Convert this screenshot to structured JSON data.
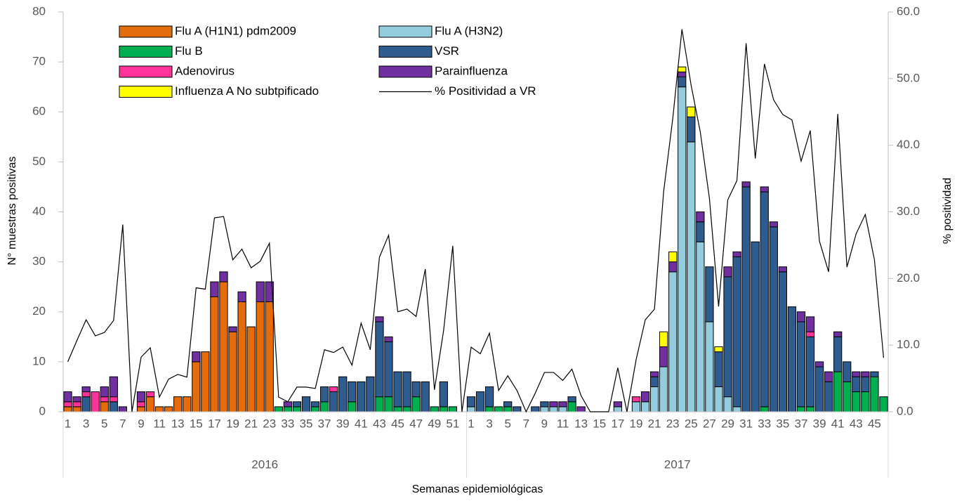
{
  "chart_data": {
    "type": "bar",
    "y_label": "N° muestras positivas",
    "y2_label": "% positividad",
    "x_label": "Semanas epidemiológicas",
    "legend": "upper left",
    "groups": [
      {
        "label": "2016",
        "categories": [
          "1",
          null,
          "3",
          null,
          "5",
          null,
          "7",
          null,
          "9",
          null,
          "11",
          null,
          "13",
          null,
          "15",
          null,
          "17",
          null,
          "19",
          null,
          "21",
          null,
          "23",
          null,
          "33",
          null,
          "35",
          null,
          "37",
          null,
          "39",
          null,
          "41",
          null,
          "43",
          null,
          "45",
          null,
          "47",
          null,
          "49",
          null,
          "51",
          null
        ]
      },
      {
        "label": "2017",
        "categories": [
          "1",
          null,
          "3",
          null,
          "5",
          null,
          "7",
          null,
          "9",
          null,
          "11",
          null,
          "13",
          null,
          "15",
          null,
          "17",
          null,
          "19",
          null,
          "21",
          null,
          "23",
          null,
          "25",
          null,
          "27",
          null,
          "29",
          null,
          "31",
          null,
          "33",
          null,
          "35",
          null,
          "37",
          null,
          "39",
          null,
          "41",
          null,
          "43",
          null,
          "45",
          null
        ]
      }
    ],
    "series": [
      {
        "name": "Flu A (H1N1) pdm2009",
        "color": "#e46c0a",
        "values": [
          1,
          1,
          0,
          0,
          2,
          0,
          0,
          0,
          1,
          3,
          1,
          1,
          3,
          3,
          10,
          12,
          23,
          26,
          16,
          22,
          17,
          22,
          22,
          0,
          0,
          0,
          0,
          0,
          0,
          0,
          0,
          0,
          0,
          0,
          0,
          0,
          0,
          0,
          0,
          0,
          0,
          0,
          0,
          0,
          0,
          0,
          0,
          0,
          0,
          0,
          0,
          0,
          0,
          0,
          0,
          0,
          0,
          0,
          0,
          0,
          0,
          0,
          0,
          0,
          0,
          0,
          0,
          0,
          0,
          0,
          0,
          0,
          0,
          0,
          0,
          0,
          0,
          0,
          0,
          0,
          0,
          0,
          0,
          0,
          0,
          0,
          0,
          0,
          0,
          0
        ]
      },
      {
        "name": "Flu A (H3N2)",
        "color": "#93cddd",
        "values": [
          0,
          0,
          0,
          0,
          0,
          0,
          0,
          0,
          0,
          0,
          0,
          0,
          0,
          0,
          0,
          0,
          0,
          0,
          0,
          0,
          0,
          0,
          0,
          0,
          0,
          0,
          0,
          0,
          0,
          0,
          0,
          0,
          0,
          0,
          0,
          0,
          0,
          0,
          0,
          0,
          0,
          0,
          0,
          0,
          1,
          0,
          0,
          0,
          0,
          0,
          0,
          0,
          1,
          1,
          1,
          0,
          0,
          0,
          0,
          0,
          1,
          0,
          2,
          2,
          5,
          9,
          28,
          65,
          54,
          34,
          18,
          5,
          3,
          1,
          0,
          0,
          0,
          0,
          0,
          0,
          0,
          0,
          0,
          0,
          0,
          0,
          0,
          0,
          0,
          0
        ]
      },
      {
        "name": "Flu B",
        "color": "#00b050",
        "values": [
          0,
          0,
          0,
          0,
          0,
          0,
          0,
          0,
          0,
          0,
          0,
          0,
          0,
          0,
          0,
          0,
          0,
          0,
          0,
          0,
          0,
          0,
          0,
          1,
          1,
          1,
          0,
          1,
          2,
          0,
          0,
          2,
          0,
          0,
          3,
          3,
          1,
          1,
          3,
          0,
          1,
          1,
          1,
          0,
          0,
          0,
          1,
          1,
          1,
          0,
          0,
          0,
          0,
          0,
          0,
          2,
          0,
          0,
          0,
          0,
          0,
          0,
          0,
          0,
          0,
          0,
          0,
          0,
          0,
          0,
          0,
          0,
          0,
          0,
          0,
          0,
          1,
          0,
          0,
          0,
          1,
          1,
          0,
          0,
          8,
          6,
          4,
          4,
          7,
          3
        ]
      },
      {
        "name": "VSR",
        "color": "#2f5c8f",
        "values": [
          0,
          0,
          3,
          0,
          0,
          2,
          0,
          0,
          0,
          0,
          0,
          0,
          0,
          0,
          0,
          0,
          0,
          0,
          0,
          0,
          0,
          0,
          0,
          0,
          0,
          1,
          3,
          1,
          3,
          4,
          7,
          4,
          6,
          7,
          15,
          11,
          7,
          7,
          3,
          6,
          0,
          5,
          0,
          0,
          2,
          4,
          4,
          0,
          1,
          1,
          0,
          1,
          1,
          0,
          0,
          1,
          0,
          0,
          0,
          0,
          0,
          0,
          0,
          0,
          2,
          0,
          0,
          2,
          5,
          4,
          11,
          7,
          24,
          30,
          45,
          34,
          43,
          37,
          28,
          21,
          17,
          14,
          9,
          6,
          7,
          4,
          3,
          3,
          1,
          0
        ]
      },
      {
        "name": "Adenovirus",
        "color": "#ff3399",
        "values": [
          1,
          1,
          1,
          4,
          1,
          1,
          0,
          0,
          1,
          1,
          0,
          0,
          0,
          0,
          0,
          0,
          0,
          0,
          0,
          0,
          0,
          0,
          0,
          0,
          0,
          0,
          0,
          0,
          0,
          1,
          0,
          0,
          0,
          0,
          0,
          0,
          0,
          0,
          0,
          0,
          0,
          0,
          0,
          0,
          0,
          0,
          0,
          0,
          0,
          0,
          0,
          0,
          0,
          0,
          0,
          0,
          0,
          0,
          0,
          0,
          0,
          0,
          1,
          0,
          0,
          0,
          0,
          0,
          0,
          0,
          0,
          0,
          0,
          0,
          0,
          0,
          0,
          0,
          0,
          0,
          0,
          1,
          0,
          0,
          0,
          0,
          0,
          0,
          0,
          0
        ]
      },
      {
        "name": "Parainfluenza",
        "color": "#7030a0",
        "values": [
          2,
          1,
          1,
          0,
          2,
          4,
          1,
          0,
          2,
          0,
          0,
          0,
          0,
          0,
          2,
          0,
          3,
          2,
          1,
          2,
          0,
          4,
          4,
          0,
          1,
          0,
          0,
          0,
          0,
          0,
          0,
          0,
          0,
          0,
          1,
          1,
          0,
          0,
          0,
          0,
          0,
          0,
          0,
          0,
          0,
          0,
          0,
          0,
          0,
          0,
          0,
          0,
          0,
          1,
          1,
          0,
          1,
          0,
          0,
          0,
          1,
          0,
          0,
          2,
          1,
          4,
          2,
          1,
          0,
          2,
          0,
          0,
          2,
          1,
          1,
          0,
          1,
          1,
          1,
          0,
          2,
          3,
          1,
          2,
          1,
          0,
          1,
          1,
          0,
          0
        ]
      },
      {
        "name": "Influenza A No subtpificado",
        "color": "#ffff00",
        "values": [
          0,
          0,
          0,
          0,
          0,
          0,
          0,
          0,
          0,
          0,
          0,
          0,
          0,
          0,
          0,
          0,
          0,
          0,
          0,
          0,
          0,
          0,
          0,
          0,
          0,
          0,
          0,
          0,
          0,
          0,
          0,
          0,
          0,
          0,
          0,
          0,
          0,
          0,
          0,
          0,
          0,
          0,
          0,
          0,
          0,
          0,
          0,
          0,
          0,
          0,
          0,
          0,
          0,
          0,
          0,
          0,
          0,
          0,
          0,
          0,
          0,
          0,
          0,
          0,
          0,
          3,
          2,
          1,
          2,
          0,
          0,
          1,
          0,
          0,
          0,
          0,
          0,
          0,
          0,
          0,
          0,
          0,
          0,
          0,
          0,
          0,
          0,
          0,
          0,
          0
        ]
      },
      {
        "name": "% Positividad a VR",
        "type": "line",
        "axis": "y2",
        "color": "#000000",
        "values": [
          7.5,
          10.7,
          13.8,
          11.4,
          11.9,
          13.7,
          28.1,
          0,
          8.2,
          9.6,
          2.2,
          4.9,
          5.6,
          5.2,
          18.6,
          18.4,
          29.1,
          29.3,
          22.8,
          24.4,
          21.6,
          22.6,
          25.3,
          2.2,
          1.5,
          3.7,
          3.7,
          3.5,
          9.3,
          8.9,
          9.7,
          7.0,
          13.3,
          9.3,
          23.2,
          26.5,
          15.0,
          15.4,
          14.3,
          21.4,
          3.3,
          12.2,
          24.9,
          0,
          9.7,
          8.7,
          11.8,
          3.2,
          5.4,
          3.2,
          0,
          2.8,
          5.9,
          5.9,
          4.7,
          6.4,
          2.4,
          0,
          0,
          0,
          6.6,
          0,
          7.8,
          13.8,
          15.4,
          33,
          44,
          57.4,
          49,
          42,
          32,
          15.8,
          31.8,
          34.7,
          55.3,
          38,
          52.2,
          46.8,
          44.6,
          43.8,
          37.6,
          42.2,
          25.6,
          21,
          44.7,
          21.7,
          26.7,
          29.6,
          22.8,
          8.1
        ]
      }
    ],
    "ylim": [
      0,
      80
    ],
    "yticks": [
      0,
      10,
      20,
      30,
      40,
      50,
      60,
      70,
      80
    ],
    "y2lim": [
      0,
      60
    ],
    "y2ticks": [
      {
        "value": 0,
        "label": "0.0"
      },
      {
        "value": 10,
        "label": "10.0"
      },
      {
        "value": 20,
        "label": "20.0"
      },
      {
        "value": 30,
        "label": "30.0"
      },
      {
        "value": 40,
        "label": "40.0"
      },
      {
        "value": 50,
        "label": "50.0"
      },
      {
        "value": 60,
        "label": "60.0"
      }
    ]
  }
}
